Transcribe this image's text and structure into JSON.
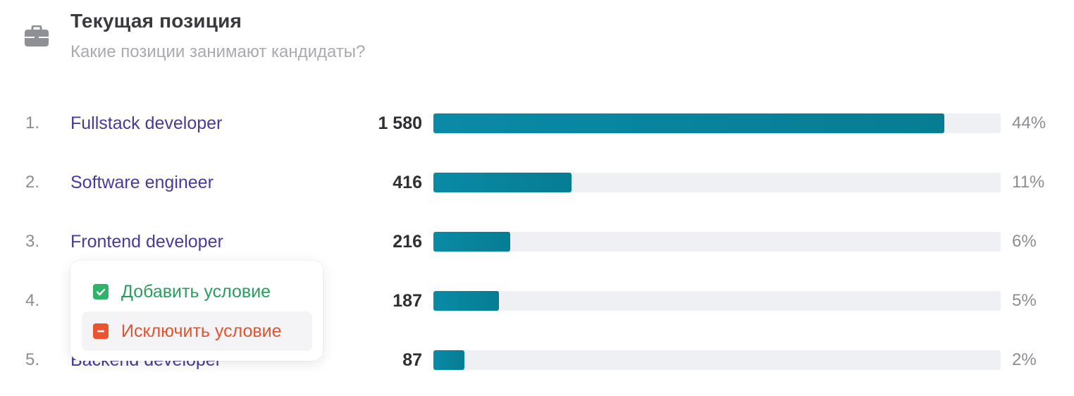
{
  "header": {
    "icon": "briefcase-icon",
    "title": "Текущая позиция",
    "subtitle": "Какие позиции занимают кандидаты?"
  },
  "rows": [
    {
      "rank": "1.",
      "label": "Fullstack developer",
      "value": "1 580",
      "percent": "44%",
      "fill_fraction": 0.9
    },
    {
      "rank": "2.",
      "label": "Software engineer",
      "value": "416",
      "percent": "11%",
      "fill_fraction": 0.244
    },
    {
      "rank": "3.",
      "label": "Frontend developer",
      "value": "216",
      "percent": "6%",
      "fill_fraction": 0.135
    },
    {
      "rank": "4.",
      "label": "",
      "value": "187",
      "percent": "5%",
      "fill_fraction": 0.115
    },
    {
      "rank": "5.",
      "label": "Backend developer",
      "value": "87",
      "percent": "2%",
      "fill_fraction": 0.055
    }
  ],
  "context_menu": {
    "add_label": "Добавить условие",
    "exclude_label": "Исключить условие"
  },
  "colors": {
    "bar_fill": "#067d93",
    "bar_track": "#eef0f3",
    "link": "#4a3a9a",
    "add": "#2fb36a",
    "exclude": "#ea5430"
  }
}
